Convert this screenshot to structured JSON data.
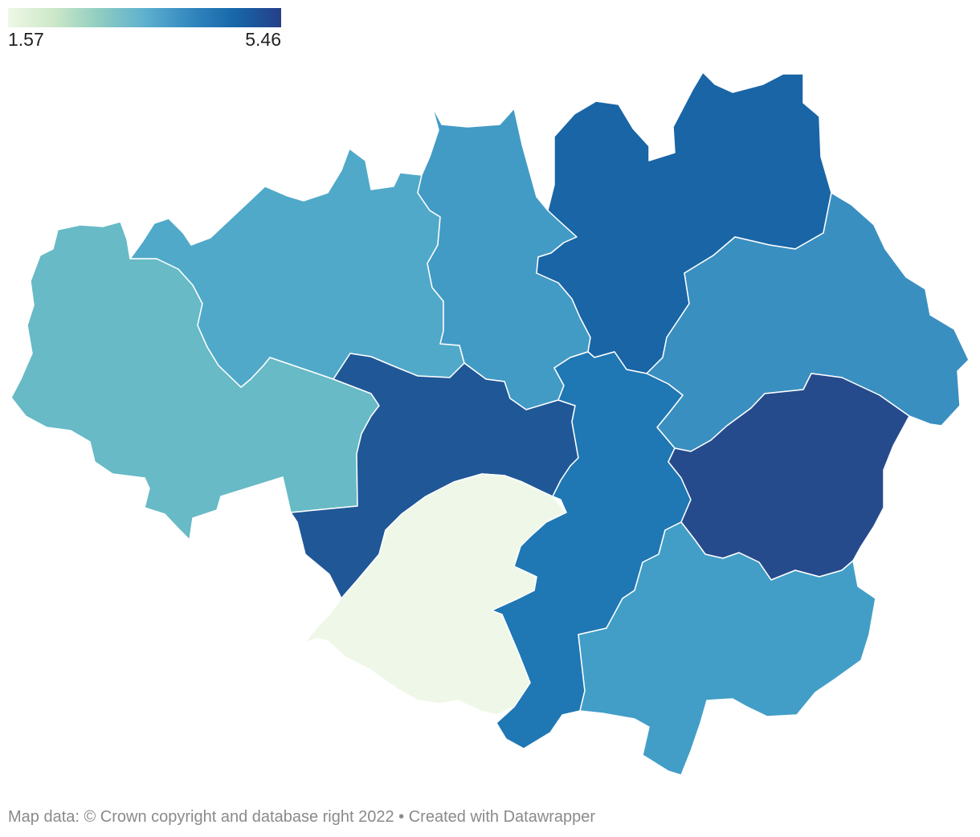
{
  "legend": {
    "min_label": "1.57",
    "max_label": "5.46",
    "min_value": 1.57,
    "max_value": 5.46,
    "colors": [
      "#eef7e6",
      "#cde8c8",
      "#8fcdc1",
      "#5eb1cf",
      "#3388bf",
      "#1666a8",
      "#263f88"
    ]
  },
  "map": {
    "regions": [
      {
        "id": "wigan",
        "color": "#67bac6"
      },
      {
        "id": "bolton",
        "color": "#50a9c9"
      },
      {
        "id": "bury",
        "color": "#429bc5"
      },
      {
        "id": "rochdale",
        "color": "#1965a6"
      },
      {
        "id": "oldham",
        "color": "#3a8fc1"
      },
      {
        "id": "salford",
        "color": "#205797"
      },
      {
        "id": "manchester",
        "color": "#1f77b4"
      },
      {
        "id": "tameside",
        "color": "#264b8c"
      },
      {
        "id": "trafford",
        "color": "#eff8e8"
      },
      {
        "id": "stockport",
        "color": "#429ec7"
      }
    ]
  },
  "footer": {
    "map_source": "Map data: © Crown copyright and database right 2022",
    "separator": "•",
    "credit": "Created with Datawrapper"
  }
}
